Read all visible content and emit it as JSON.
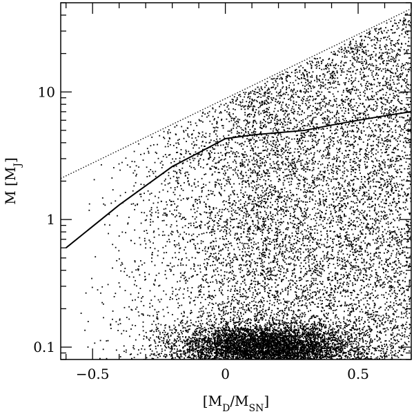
{
  "chart_data": {
    "type": "scatter",
    "title": "",
    "xlabel": "[M_D/M_SN]",
    "ylabel": "M [M_J]",
    "x_scale": "linear",
    "y_scale": "log",
    "xlim": [
      -0.62,
      0.7
    ],
    "ylim": [
      0.08,
      50
    ],
    "grid": false,
    "legend": "none",
    "x_ticks": [
      {
        "value": -0.5,
        "label": "−0.5"
      },
      {
        "value": 0,
        "label": "0"
      },
      {
        "value": 0.5,
        "label": "0.5"
      }
    ],
    "y_ticks": [
      {
        "value": 0.1,
        "label": "0.1"
      },
      {
        "value": 1,
        "label": "1"
      },
      {
        "value": 10,
        "label": "10"
      }
    ],
    "series": [
      {
        "kind": "solid-line",
        "x": [
          -0.6,
          -0.4,
          -0.2,
          0.0,
          0.1,
          0.2,
          0.3,
          0.4,
          0.5,
          0.6,
          0.7
        ],
        "y": [
          0.6,
          1.3,
          2.6,
          4.3,
          4.6,
          4.8,
          5.0,
          5.5,
          6.0,
          6.5,
          7.0
        ]
      },
      {
        "kind": "dotted-line",
        "x": [
          -0.62,
          0.7
        ],
        "y": [
          2.1,
          45
        ]
      },
      {
        "kind": "points",
        "description_model": {
          "core_center": [
            0.15,
            0.1
          ],
          "core_count": 5500,
          "spread_count": 9000,
          "upper_bound_line": "dotted-line"
        }
      }
    ],
    "colors": {
      "points": "#000000",
      "lines": "#000000",
      "background": "#ffffff"
    }
  }
}
